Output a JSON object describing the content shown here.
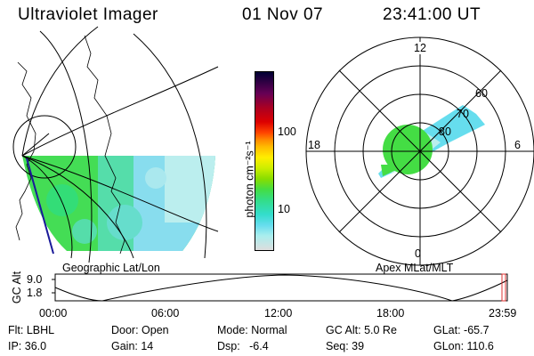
{
  "header": {
    "instrument": "Ultraviolet Imager",
    "date": "01 Nov 07",
    "time": "23:41:00 UT"
  },
  "geo_panel": {
    "label": "Geographic Lat/Lon"
  },
  "polar_panel": {
    "label": "Apex MLat/MLT",
    "mlt_labels": {
      "top": "12",
      "left": "18",
      "right": "6",
      "bottom": "0"
    },
    "lat_labels": [
      "60",
      "70",
      "80"
    ]
  },
  "colorbar": {
    "unit_label": "photon cm⁻²s⁻¹",
    "ticks": [
      "100",
      "10"
    ],
    "colors": [
      "#000033",
      "#330044",
      "#660055",
      "#aa0022",
      "#dd0000",
      "#ff4400",
      "#ff8800",
      "#ffbb00",
      "#ffee00",
      "#ccee00",
      "#88dd00",
      "#44dd44",
      "#33dd88",
      "#33ddcc",
      "#66ddee",
      "#aaeeee",
      "#dddddd"
    ]
  },
  "altitude_track": {
    "axis_label": "GC Alt",
    "y_ticks": [
      "9.0",
      "1.8"
    ],
    "x_ticks": [
      "00:00",
      "06:00",
      "12:00",
      "18:00",
      "23:59"
    ]
  },
  "info": {
    "filter": "Flt: LBHL",
    "ip": "IP: 36.0",
    "door": "Door: Open",
    "gain": "Gain: 14",
    "mode": "Mode: Normal",
    "dsp": "Dsp:   -6.4",
    "gc_alt": "GC Alt: 5.0 Re",
    "seq": "Seq: 39",
    "glat": "GLat: -65.7",
    "glon": "GLon: 110.6"
  },
  "colors": {
    "aurora_green": "#44dd44",
    "aurora_cyan": "#66ddee",
    "marker_red": "#dd3333",
    "track_blue": "#1a1a99"
  }
}
